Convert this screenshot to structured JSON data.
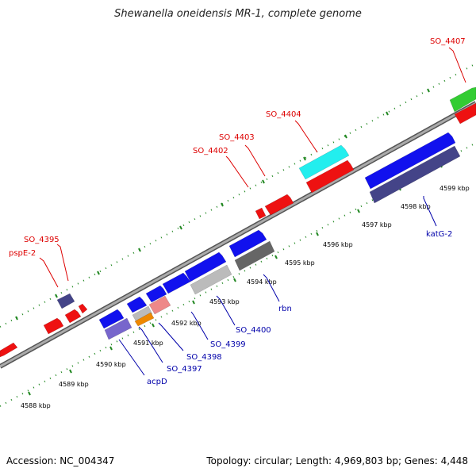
{
  "title": "Shewanella oneidensis MR-1, complete genome",
  "footer": {
    "accession": "Accession: NC_004347",
    "topology": "Topology: circular; Length: 4,969,803 bp; Genes: 4,448"
  },
  "colors": {
    "backbone": "#888888",
    "tick": "#228822",
    "label_top": "#dd0000",
    "label_bottom": "#0000aa",
    "red": "#ee1111",
    "blue": "#1111ee",
    "slate": "#444488",
    "lavender": "#7766cc",
    "cyan": "#22eeee",
    "green": "#33cc33",
    "gray": "#666666",
    "lightgray": "#bbbbbb",
    "pink": "#ee8888",
    "orange": "#ee8800"
  },
  "scale": {
    "ticks": [
      "4588 kbp",
      "4589 kbp",
      "4590 kbp",
      "4591 kbp",
      "4592 kbp",
      "4593 kbp",
      "4594 kbp",
      "4595 kbp",
      "4596 kbp",
      "4597 kbp",
      "4598 kbp",
      "4599 kbp"
    ]
  },
  "gene_labels": {
    "top": [
      "SO_4407",
      "SO_4404",
      "SO_4403",
      "SO_4402",
      "SO_4395",
      "pspE-2"
    ],
    "bottom": [
      "katG-2",
      "rbn",
      "SO_4400",
      "SO_4399",
      "SO_4398",
      "SO_4397",
      "acpD"
    ]
  }
}
